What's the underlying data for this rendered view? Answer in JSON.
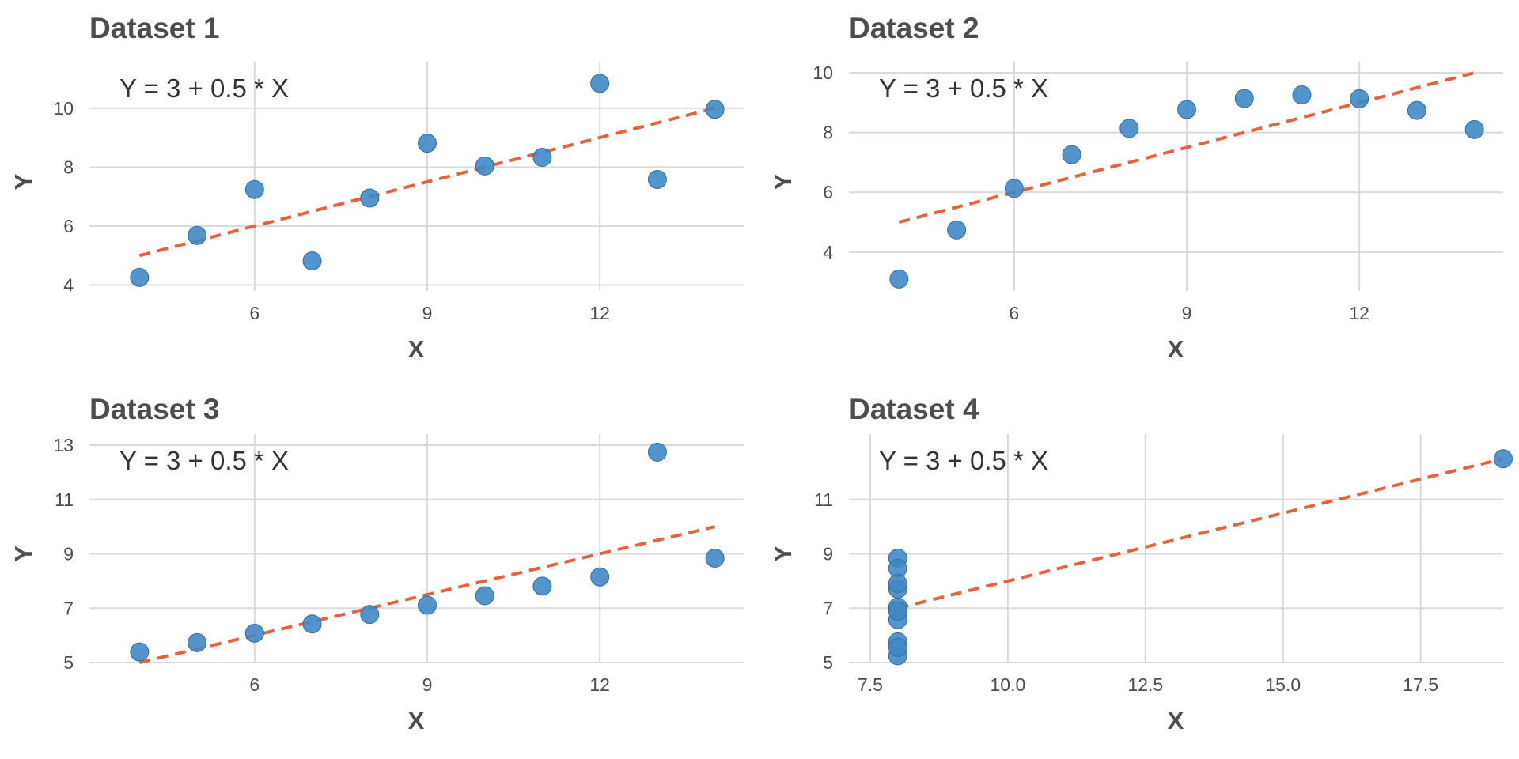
{
  "chart_data": [
    {
      "type": "scatter",
      "title": "Dataset 1",
      "xlabel": "X",
      "ylabel": "Y",
      "annotation": "Y = 3 + 0.5 * X",
      "xlim": [
        3.5,
        14.5
      ],
      "ylim": [
        3.8,
        11.2
      ],
      "xticks": [
        6,
        9,
        12
      ],
      "xtick_labels": [
        "6",
        "9",
        "12"
      ],
      "yticks": [
        4,
        6,
        8,
        10
      ],
      "ytick_labels": [
        "4",
        "6",
        "8",
        "10"
      ],
      "fit": {
        "intercept": 3,
        "slope": 0.5,
        "x_range": [
          4,
          14
        ]
      },
      "points": [
        {
          "x": 10,
          "y": 8.04
        },
        {
          "x": 8,
          "y": 6.95
        },
        {
          "x": 13,
          "y": 7.58
        },
        {
          "x": 9,
          "y": 8.81
        },
        {
          "x": 11,
          "y": 8.33
        },
        {
          "x": 14,
          "y": 9.96
        },
        {
          "x": 6,
          "y": 7.24
        },
        {
          "x": 4,
          "y": 4.26
        },
        {
          "x": 12,
          "y": 10.84
        },
        {
          "x": 7,
          "y": 4.82
        },
        {
          "x": 5,
          "y": 5.68
        }
      ]
    },
    {
      "type": "scatter",
      "title": "Dataset 2",
      "xlabel": "X",
      "ylabel": "Y",
      "annotation": "Y = 3 + 0.5 * X",
      "xlim": [
        3.5,
        14.5
      ],
      "ylim": [
        2.7,
        10.0
      ],
      "xticks": [
        6,
        9,
        12
      ],
      "xtick_labels": [
        "6",
        "9",
        "12"
      ],
      "yticks": [
        4,
        6,
        8,
        10
      ],
      "ytick_labels": [
        "4",
        "6",
        "8",
        "10"
      ],
      "fit": {
        "intercept": 3,
        "slope": 0.5,
        "x_range": [
          4,
          14
        ]
      },
      "points": [
        {
          "x": 10,
          "y": 9.14
        },
        {
          "x": 8,
          "y": 8.14
        },
        {
          "x": 13,
          "y": 8.74
        },
        {
          "x": 9,
          "y": 8.77
        },
        {
          "x": 11,
          "y": 9.26
        },
        {
          "x": 14,
          "y": 8.1
        },
        {
          "x": 6,
          "y": 6.13
        },
        {
          "x": 4,
          "y": 3.1
        },
        {
          "x": 12,
          "y": 9.13
        },
        {
          "x": 7,
          "y": 7.26
        },
        {
          "x": 5,
          "y": 4.74
        }
      ]
    },
    {
      "type": "scatter",
      "title": "Dataset 3",
      "xlabel": "X",
      "ylabel": "Y",
      "annotation": "Y = 3 + 0.5 * X",
      "xlim": [
        3.5,
        14.5
      ],
      "ylim": [
        5.0,
        13.0
      ],
      "xticks": [
        6,
        9,
        12
      ],
      "xtick_labels": [
        "6",
        "9",
        "12"
      ],
      "yticks": [
        5,
        7,
        9,
        11,
        13
      ],
      "ytick_labels": [
        "5",
        "7",
        "9",
        "11",
        "13"
      ],
      "fit": {
        "intercept": 3,
        "slope": 0.5,
        "x_range": [
          4,
          14
        ]
      },
      "points": [
        {
          "x": 10,
          "y": 7.46
        },
        {
          "x": 8,
          "y": 6.77
        },
        {
          "x": 13,
          "y": 12.74
        },
        {
          "x": 9,
          "y": 7.11
        },
        {
          "x": 11,
          "y": 7.81
        },
        {
          "x": 14,
          "y": 8.84
        },
        {
          "x": 6,
          "y": 6.08
        },
        {
          "x": 4,
          "y": 5.39
        },
        {
          "x": 12,
          "y": 8.15
        },
        {
          "x": 7,
          "y": 6.42
        },
        {
          "x": 5,
          "y": 5.73
        }
      ]
    },
    {
      "type": "scatter",
      "title": "Dataset 4",
      "xlabel": "X",
      "ylabel": "Y",
      "annotation": "Y = 3 + 0.5 * X",
      "xlim": [
        7.5,
        19.0
      ],
      "ylim": [
        5.0,
        13.0
      ],
      "xticks": [
        7.5,
        10.0,
        12.5,
        15.0,
        17.5
      ],
      "xtick_labels": [
        "7.5",
        "10.0",
        "12.5",
        "15.0",
        "17.5"
      ],
      "yticks": [
        5,
        7,
        9,
        11
      ],
      "ytick_labels": [
        "5",
        "7",
        "9",
        "11"
      ],
      "fit": {
        "intercept": 3,
        "slope": 0.5,
        "x_range": [
          8,
          19
        ]
      },
      "points": [
        {
          "x": 8,
          "y": 6.58
        },
        {
          "x": 8,
          "y": 5.76
        },
        {
          "x": 8,
          "y": 7.71
        },
        {
          "x": 8,
          "y": 8.84
        },
        {
          "x": 8,
          "y": 8.47
        },
        {
          "x": 8,
          "y": 7.04
        },
        {
          "x": 8,
          "y": 5.25
        },
        {
          "x": 19,
          "y": 12.5
        },
        {
          "x": 8,
          "y": 5.56
        },
        {
          "x": 8,
          "y": 7.91
        },
        {
          "x": 8,
          "y": 6.89
        }
      ]
    }
  ]
}
